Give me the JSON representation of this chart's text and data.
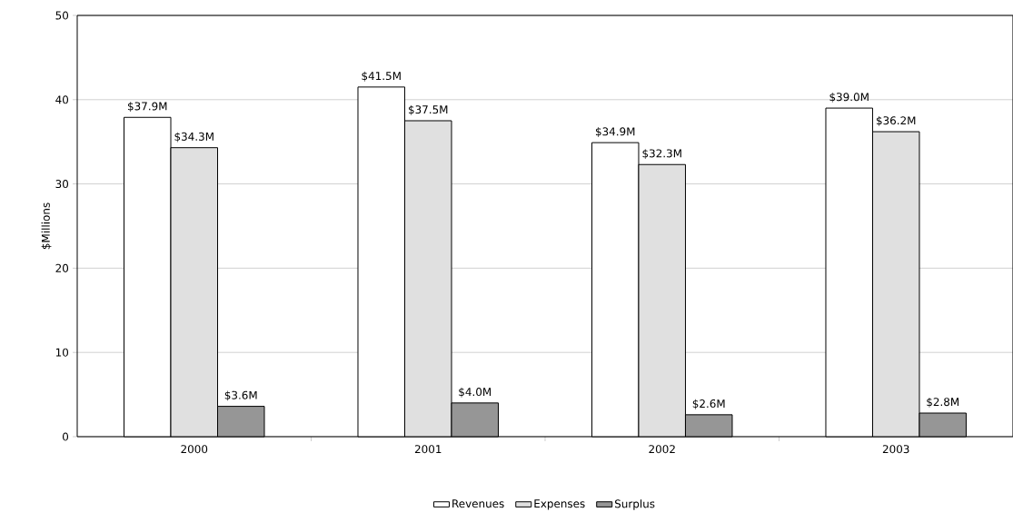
{
  "chart_data": {
    "type": "bar",
    "ylabel": "$Millions",
    "categories": [
      "2000",
      "2001",
      "2002",
      "2003"
    ],
    "series": [
      {
        "name": "Revenues",
        "color": "#ffffff",
        "values": [
          37.9,
          41.5,
          34.9,
          39.0
        ],
        "value_labels": [
          "$37.9M",
          "$41.5M",
          "$34.9M",
          "$39.0M"
        ]
      },
      {
        "name": "Expenses",
        "color": "#e0e0e0",
        "values": [
          34.3,
          37.5,
          32.3,
          36.2
        ],
        "value_labels": [
          "$34.3M",
          "$37.5M",
          "$32.3M",
          "$36.2M"
        ]
      },
      {
        "name": "Surplus",
        "color": "#969696",
        "values": [
          3.6,
          4.0,
          2.6,
          2.8
        ],
        "value_labels": [
          "$3.6M",
          "$4.0M",
          "$2.6M",
          "$2.8M"
        ]
      }
    ],
    "ylim": [
      0,
      50
    ],
    "yticks": [
      0,
      10,
      20,
      30,
      40,
      50
    ],
    "grid": "y",
    "legend": "bottom"
  }
}
